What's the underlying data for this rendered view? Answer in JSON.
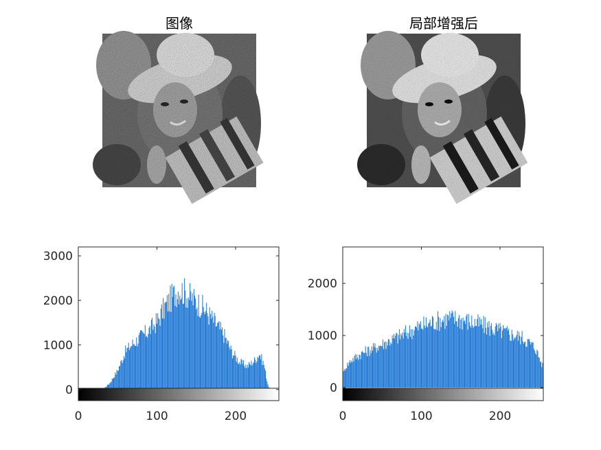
{
  "figure": {
    "background": "#ffffff",
    "bar_color": "#1f77d4",
    "axis_color": "#262626"
  },
  "images": [
    {
      "title": "图像",
      "description": "Grayscale portrait, original"
    },
    {
      "title": "局部增强后",
      "description": "Grayscale portrait, locally enhanced"
    }
  ],
  "chart_data": [
    {
      "type": "bar",
      "title": "",
      "xlabel": "",
      "ylabel": "",
      "xlim": [
        0,
        255
      ],
      "ylim": [
        -250,
        3200
      ],
      "yticks": [
        0,
        1000,
        2000,
        3000
      ],
      "xticks": [
        0,
        100,
        200
      ],
      "colorbar": "gray",
      "envelope": [
        [
          0,
          0
        ],
        [
          25,
          0
        ],
        [
          33,
          30
        ],
        [
          40,
          150
        ],
        [
          50,
          450
        ],
        [
          60,
          900
        ],
        [
          70,
          1100
        ],
        [
          80,
          1250
        ],
        [
          90,
          1400
        ],
        [
          100,
          1600
        ],
        [
          110,
          1950
        ],
        [
          120,
          2200
        ],
        [
          128,
          2380
        ],
        [
          135,
          2300
        ],
        [
          145,
          2150
        ],
        [
          155,
          2000
        ],
        [
          165,
          1800
        ],
        [
          175,
          1550
        ],
        [
          185,
          1300
        ],
        [
          195,
          900
        ],
        [
          205,
          650
        ],
        [
          215,
          550
        ],
        [
          225,
          700
        ],
        [
          230,
          850
        ],
        [
          236,
          600
        ],
        [
          240,
          200
        ],
        [
          243,
          0
        ],
        [
          255,
          0
        ]
      ]
    },
    {
      "type": "bar",
      "title": "",
      "xlabel": "",
      "ylabel": "",
      "xlim": [
        0,
        255
      ],
      "ylim": [
        -250,
        2700
      ],
      "yticks": [
        0,
        1000,
        2000
      ],
      "xticks": [
        0,
        100,
        200
      ],
      "colorbar": "gray",
      "envelope": [
        [
          0,
          250
        ],
        [
          3,
          400
        ],
        [
          10,
          550
        ],
        [
          25,
          700
        ],
        [
          40,
          800
        ],
        [
          60,
          950
        ],
        [
          80,
          1100
        ],
        [
          100,
          1250
        ],
        [
          120,
          1350
        ],
        [
          135,
          1400
        ],
        [
          150,
          1380
        ],
        [
          170,
          1300
        ],
        [
          190,
          1200
        ],
        [
          210,
          1100
        ],
        [
          230,
          1000
        ],
        [
          245,
          800
        ],
        [
          250,
          600
        ],
        [
          255,
          400
        ]
      ]
    }
  ]
}
